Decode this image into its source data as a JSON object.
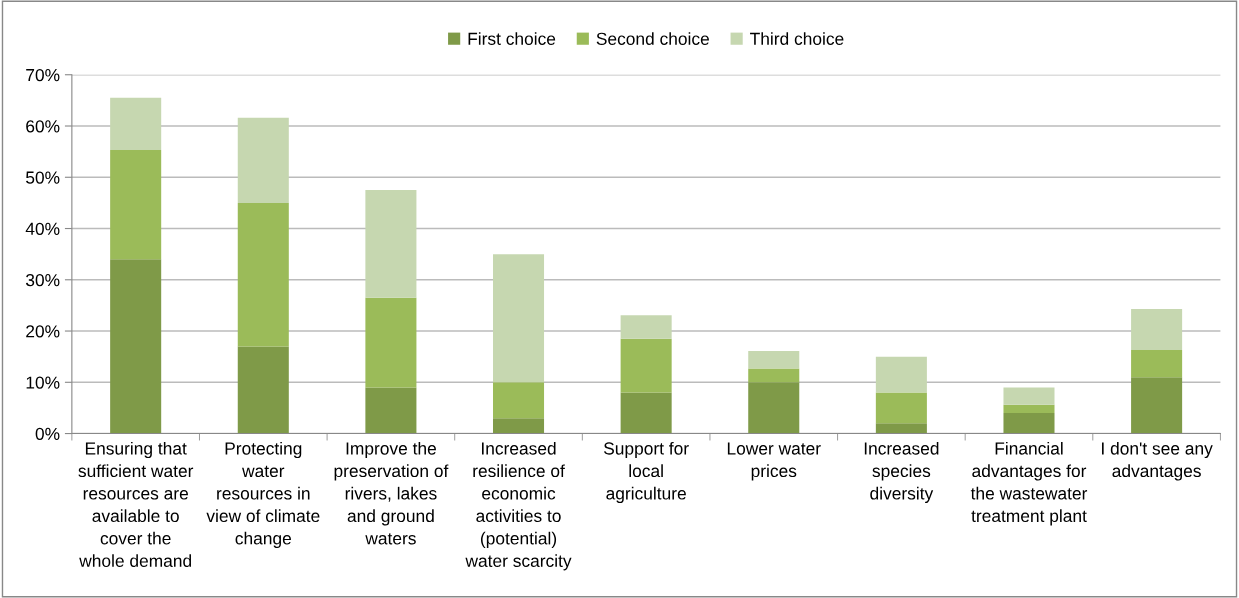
{
  "chart_data": {
    "type": "bar",
    "stacked": true,
    "categories": [
      "Ensuring that\nsufficient water\nresources are\navailable to\ncover the\nwhole demand",
      "Protecting\nwater\nresources in\nview of climate\nchange",
      "Improve the\npreservation of\nrivers, lakes\nand ground\nwaters",
      "Increased\nresilience of\neconomic\nactivities to\n(potential)\nwater scarcity",
      "Support for\nlocal\nagriculture",
      "Lower water\nprices",
      "Increased\nspecies\ndiversity",
      "Financial\nadvantages for\nthe wastewater\ntreatment plant",
      "I don't see any\nadvantages"
    ],
    "series": [
      {
        "name": "First choice",
        "color": "#7f9a48",
        "values": [
          34,
          17,
          9,
          3,
          8,
          10,
          2,
          4,
          11
        ]
      },
      {
        "name": "Second choice",
        "color": "#9bbb59",
        "values": [
          21.3,
          28,
          17.5,
          7,
          10.5,
          2.7,
          6,
          1.6,
          5.3
        ]
      },
      {
        "name": "Third choice",
        "color": "#c6d7b0",
        "values": [
          10.2,
          16.6,
          21,
          25,
          4.6,
          3.4,
          7,
          3.4,
          8
        ]
      }
    ],
    "ylim": [
      0,
      70
    ],
    "yticks": [
      {
        "value": 0,
        "label": "0%"
      },
      {
        "value": 10,
        "label": "10%"
      },
      {
        "value": 20,
        "label": "20%"
      },
      {
        "value": 30,
        "label": "30%"
      },
      {
        "value": 40,
        "label": "40%"
      },
      {
        "value": 50,
        "label": "50%"
      },
      {
        "value": 60,
        "label": "60%"
      },
      {
        "value": 70,
        "label": "70%"
      }
    ],
    "grid": "y",
    "legend": "top"
  }
}
